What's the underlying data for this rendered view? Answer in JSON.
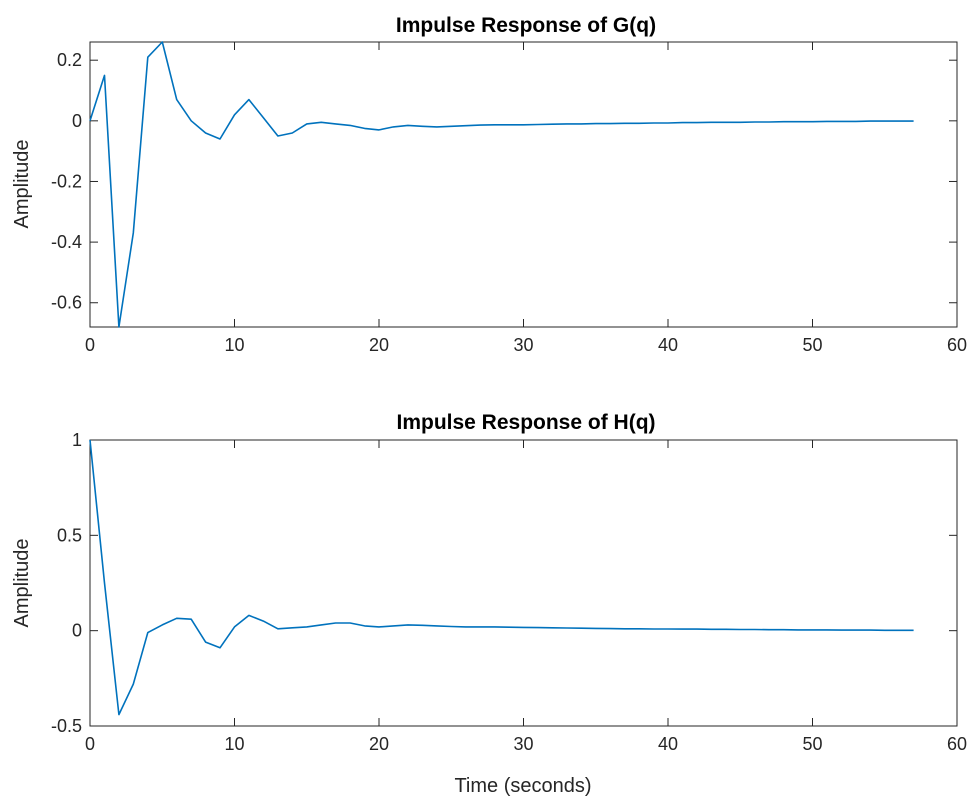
{
  "line_color": "#0072BD",
  "chart_data": [
    {
      "type": "line",
      "title": "Impulse Response of G(q)",
      "xlabel": "",
      "ylabel": "Amplitude",
      "xlim": [
        0,
        60
      ],
      "ylim": [
        -0.68,
        0.26
      ],
      "xticks": [
        0,
        10,
        20,
        30,
        40,
        50,
        60
      ],
      "xtick_labels": [
        "0",
        "10",
        "20",
        "30",
        "40",
        "50",
        "60"
      ],
      "yticks": [
        0.2,
        0,
        -0.2,
        -0.4,
        -0.6
      ],
      "ytick_labels": [
        "0.2",
        "0",
        "-0.2",
        "-0.4",
        "-0.6"
      ],
      "grid": false,
      "series": [
        {
          "x": [
            0,
            1,
            2,
            3,
            4,
            5,
            6,
            7,
            8,
            9,
            10,
            11,
            12,
            13,
            14,
            15,
            16,
            17,
            18,
            19,
            20,
            21,
            22,
            23,
            24,
            25,
            26,
            27,
            28,
            29,
            30,
            31,
            32,
            33,
            34,
            35,
            36,
            37,
            38,
            39,
            40,
            41,
            42,
            43,
            44,
            45,
            46,
            47,
            48,
            49,
            50,
            51,
            52,
            53,
            54,
            55,
            56,
            57
          ],
          "y": [
            0,
            0.15,
            -0.68,
            -0.37,
            0.21,
            0.26,
            0.07,
            0.0,
            -0.04,
            -0.06,
            0.02,
            0.07,
            0.01,
            -0.05,
            -0.04,
            -0.01,
            -0.005,
            -0.01,
            -0.015,
            -0.025,
            -0.03,
            -0.02,
            -0.015,
            -0.018,
            -0.02,
            -0.018,
            -0.016,
            -0.014,
            -0.013,
            -0.013,
            -0.013,
            -0.012,
            -0.011,
            -0.01,
            -0.01,
            -0.009,
            -0.009,
            -0.008,
            -0.008,
            -0.007,
            -0.007,
            -0.006,
            -0.006,
            -0.005,
            -0.005,
            -0.005,
            -0.004,
            -0.004,
            -0.003,
            -0.003,
            -0.003,
            -0.002,
            -0.002,
            -0.002,
            -0.001,
            -0.001,
            -0.001,
            -0.001
          ]
        }
      ]
    },
    {
      "type": "line",
      "title": "Impulse Response of H(q)",
      "xlabel": "Time (seconds)",
      "ylabel": "Amplitude",
      "xlim": [
        0,
        60
      ],
      "ylim": [
        -0.5,
        1
      ],
      "xticks": [
        0,
        10,
        20,
        30,
        40,
        50,
        60
      ],
      "xtick_labels": [
        "0",
        "10",
        "20",
        "30",
        "40",
        "50",
        "60"
      ],
      "yticks": [
        1,
        0.5,
        0,
        -0.5
      ],
      "ytick_labels": [
        "1",
        "0.5",
        "0",
        "-0.5"
      ],
      "grid": false,
      "series": [
        {
          "x": [
            0,
            1,
            2,
            3,
            4,
            5,
            6,
            7,
            8,
            9,
            10,
            11,
            12,
            13,
            14,
            15,
            16,
            17,
            18,
            19,
            20,
            21,
            22,
            23,
            24,
            25,
            26,
            27,
            28,
            29,
            30,
            31,
            32,
            33,
            34,
            35,
            36,
            37,
            38,
            39,
            40,
            41,
            42,
            43,
            44,
            45,
            46,
            47,
            48,
            49,
            50,
            51,
            52,
            53,
            54,
            55,
            56,
            57
          ],
          "y": [
            1,
            0.25,
            -0.44,
            -0.28,
            -0.01,
            0.03,
            0.065,
            0.06,
            -0.06,
            -0.09,
            0.02,
            0.08,
            0.05,
            0.01,
            0.015,
            0.02,
            0.03,
            0.04,
            0.04,
            0.025,
            0.02,
            0.025,
            0.03,
            0.028,
            0.025,
            0.022,
            0.02,
            0.02,
            0.02,
            0.018,
            0.017,
            0.016,
            0.015,
            0.014,
            0.013,
            0.012,
            0.011,
            0.01,
            0.01,
            0.009,
            0.009,
            0.008,
            0.008,
            0.007,
            0.007,
            0.006,
            0.006,
            0.005,
            0.005,
            0.004,
            0.004,
            0.004,
            0.003,
            0.003,
            0.003,
            0.002,
            0.002,
            0.002
          ]
        }
      ]
    }
  ]
}
